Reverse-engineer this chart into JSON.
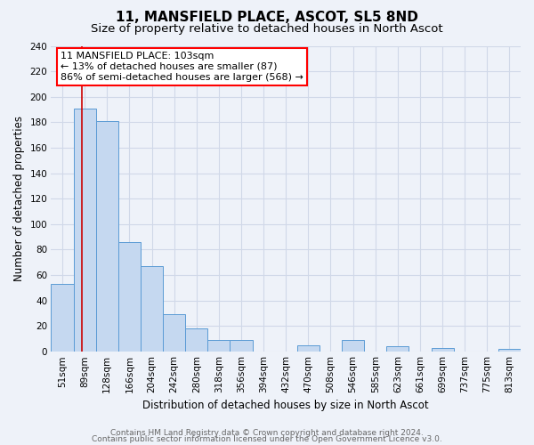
{
  "title": "11, MANSFIELD PLACE, ASCOT, SL5 8ND",
  "subtitle": "Size of property relative to detached houses in North Ascot",
  "xlabel": "Distribution of detached houses by size in North Ascot",
  "ylabel": "Number of detached properties",
  "bin_labels": [
    "51sqm",
    "89sqm",
    "128sqm",
    "166sqm",
    "204sqm",
    "242sqm",
    "280sqm",
    "318sqm",
    "356sqm",
    "394sqm",
    "432sqm",
    "470sqm",
    "508sqm",
    "546sqm",
    "585sqm",
    "623sqm",
    "661sqm",
    "699sqm",
    "737sqm",
    "775sqm",
    "813sqm"
  ],
  "bar_heights": [
    53,
    191,
    181,
    86,
    67,
    29,
    18,
    9,
    9,
    0,
    0,
    5,
    0,
    9,
    0,
    4,
    0,
    3,
    0,
    0,
    2
  ],
  "bar_color": "#c5d8f0",
  "bar_edge_color": "#5b9bd5",
  "ylim": [
    0,
    240
  ],
  "yticks": [
    0,
    20,
    40,
    60,
    80,
    100,
    120,
    140,
    160,
    180,
    200,
    220,
    240
  ],
  "property_line_x": 1.36,
  "property_line_label": "11 MANSFIELD PLACE: 103sqm",
  "annotation_line1": "← 13% of detached houses are smaller (87)",
  "annotation_line2": "86% of semi-detached houses are larger (568) →",
  "box_color": "white",
  "box_edge_color": "red",
  "red_line_color": "#cc0000",
  "footer1": "Contains HM Land Registry data © Crown copyright and database right 2024.",
  "footer2": "Contains public sector information licensed under the Open Government Licence v3.0.",
  "bg_color": "#eef2f9",
  "grid_color": "#d0d8e8",
  "title_fontsize": 11,
  "subtitle_fontsize": 9.5,
  "label_fontsize": 8.5,
  "tick_fontsize": 7.5,
  "footer_fontsize": 6.5,
  "annotation_fontsize": 8
}
